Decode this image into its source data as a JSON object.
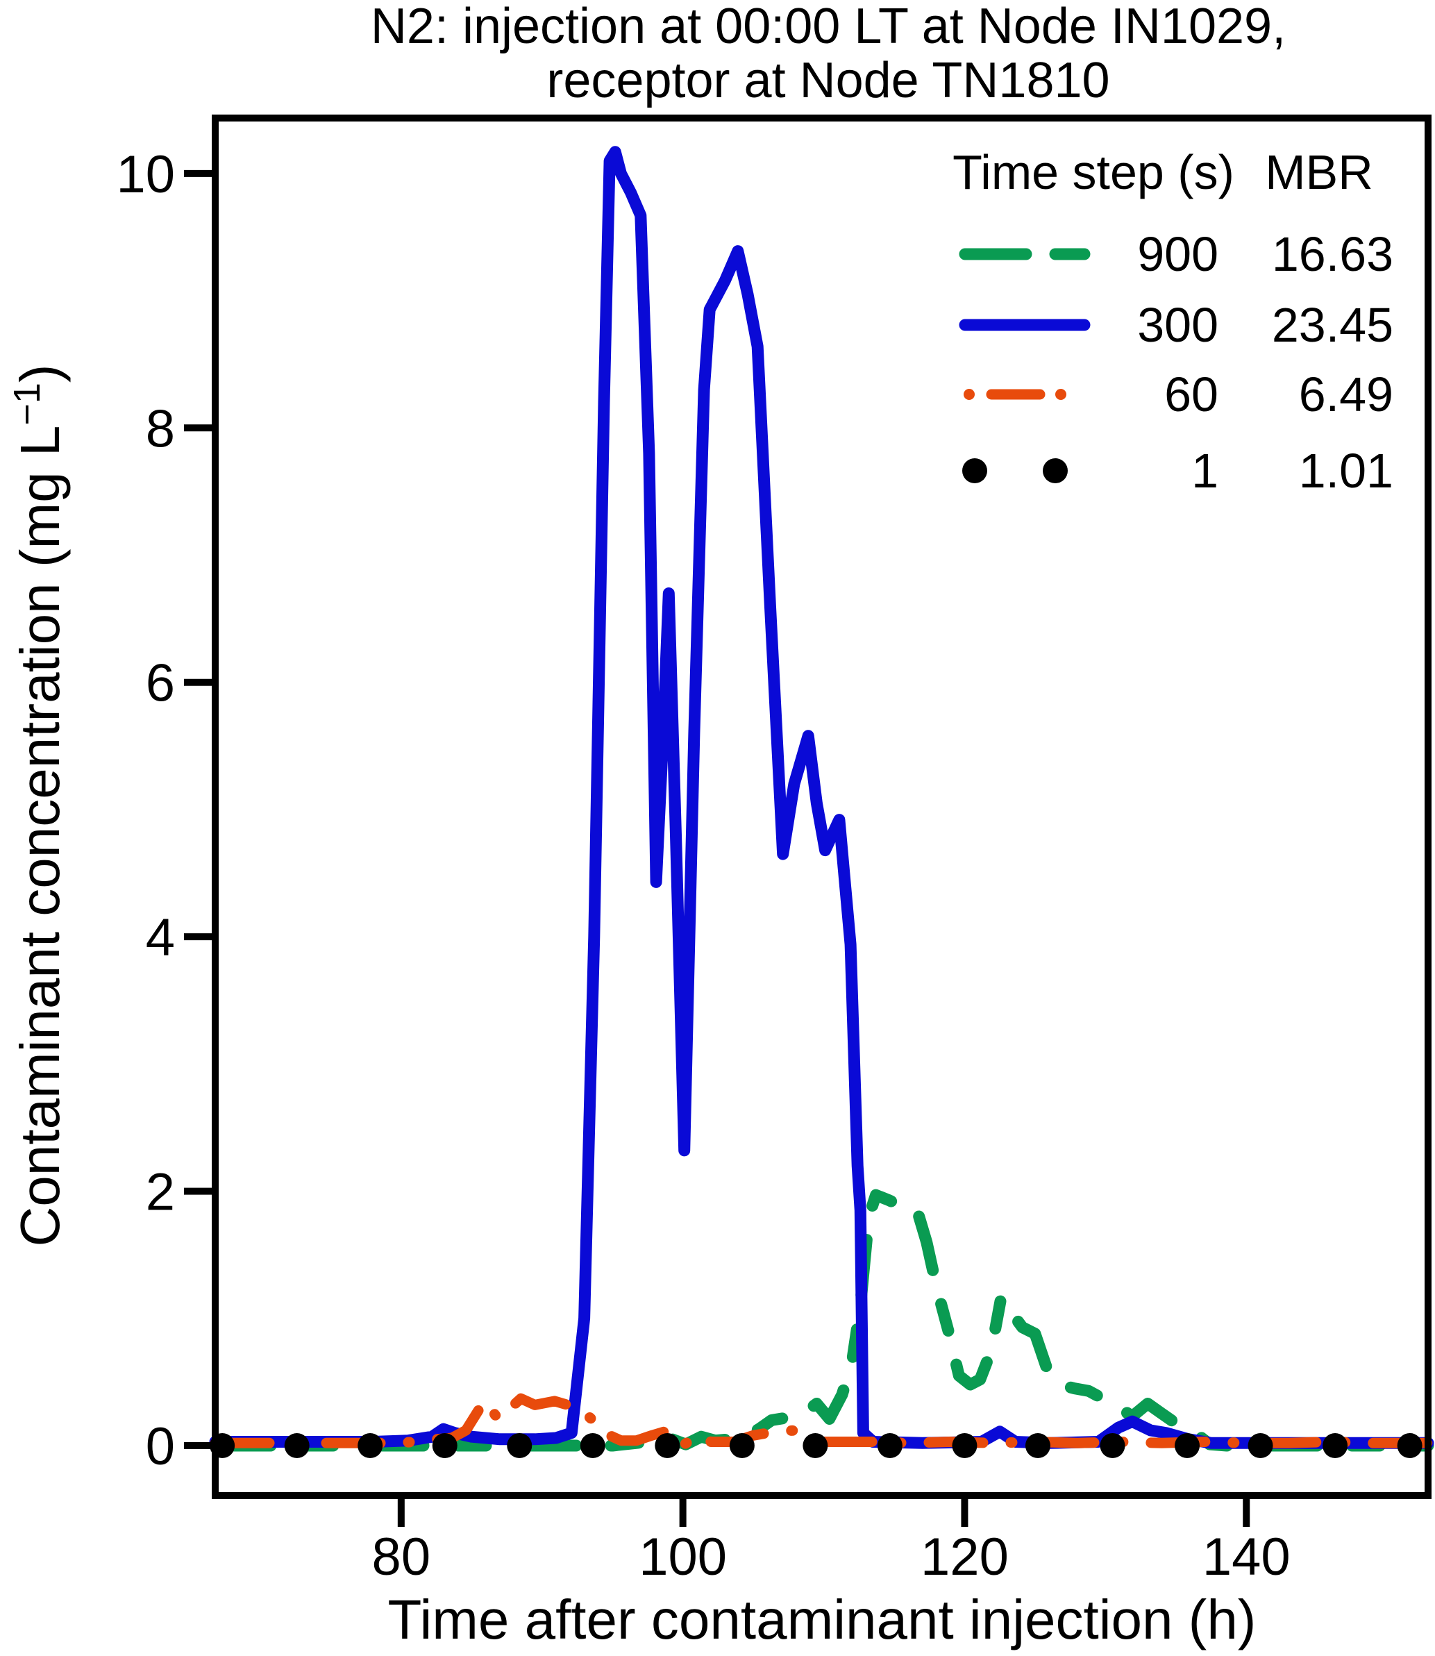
{
  "title": {
    "line1": "N2: injection at 00:00 LT at Node IN1029,",
    "line2": "receptor at Node TN1810"
  },
  "axes": {
    "x_label": "Time after contaminant injection (h)",
    "y_label_main": "Contaminant concentration (mg L",
    "y_label_sup": "−1",
    "y_label_close": ")",
    "x_ticks": [
      80,
      100,
      120,
      140
    ],
    "y_ticks": [
      0,
      2,
      4,
      6,
      8,
      10
    ]
  },
  "legend": {
    "col1_header": "Time step (s)",
    "col2_header": "MBR",
    "rows": [
      {
        "sample": "green-dash",
        "step": "900",
        "mbr": "16.63"
      },
      {
        "sample": "blue-solid",
        "step": "300",
        "mbr": "23.45"
      },
      {
        "sample": "orange-dashdot",
        "step": "60",
        "mbr": "6.49"
      },
      {
        "sample": "black-dots",
        "step": "1",
        "mbr": "1.01"
      }
    ]
  },
  "colors": {
    "green": "#0a9b52",
    "blue": "#0a0ad6",
    "orange": "#e84b0c",
    "black": "#000000"
  },
  "chart_data": {
    "type": "line",
    "title": "N2: injection at 00:00 LT at Node IN1029, receptor at Node TN1810",
    "xlabel": "Time after contaminant injection (h)",
    "ylabel": "Contaminant concentration (mg L^-1)",
    "xlim": [
      66.8,
      152.9
    ],
    "ylim": [
      -0.393,
      10.436
    ],
    "grid": false,
    "legend_position": "top-right",
    "series": [
      {
        "name": "900",
        "mbr": 16.63,
        "style": "dashed",
        "color": "#0a9b52",
        "points": [
          [
            66.8,
            0.0
          ],
          [
            95.0,
            0.0
          ],
          [
            97.5,
            0.03
          ],
          [
            99.0,
            0.06
          ],
          [
            100.2,
            0.01
          ],
          [
            101.3,
            0.07
          ],
          [
            102.3,
            0.04
          ],
          [
            103.4,
            0.05
          ],
          [
            104.4,
            0.07
          ],
          [
            105.4,
            0.13
          ],
          [
            106.3,
            0.2
          ],
          [
            107.4,
            0.22
          ],
          [
            108.4,
            0.24
          ],
          [
            109.5,
            0.33
          ],
          [
            110.4,
            0.21
          ],
          [
            111.3,
            0.4
          ],
          [
            112.0,
            0.65
          ],
          [
            112.6,
            1.1
          ],
          [
            113.2,
            1.8
          ],
          [
            113.7,
            1.97
          ],
          [
            114.6,
            1.93
          ],
          [
            115.6,
            1.88
          ],
          [
            116.6,
            1.86
          ],
          [
            117.3,
            1.6
          ],
          [
            118.0,
            1.25
          ],
          [
            118.9,
            0.88
          ],
          [
            119.6,
            0.55
          ],
          [
            120.4,
            0.48
          ],
          [
            121.1,
            0.52
          ],
          [
            121.9,
            0.75
          ],
          [
            122.6,
            1.17
          ],
          [
            123.3,
            1.05
          ],
          [
            124.1,
            0.93
          ],
          [
            125.0,
            0.88
          ],
          [
            125.8,
            0.62
          ],
          [
            126.7,
            0.48
          ],
          [
            127.8,
            0.45
          ],
          [
            128.8,
            0.43
          ],
          [
            129.8,
            0.37
          ],
          [
            130.7,
            0.32
          ],
          [
            131.9,
            0.23
          ],
          [
            133.0,
            0.33
          ],
          [
            133.9,
            0.26
          ],
          [
            134.8,
            0.19
          ],
          [
            135.8,
            0.13
          ],
          [
            136.6,
            0.08
          ],
          [
            137.4,
            0.01
          ],
          [
            138.6,
            0.0
          ],
          [
            152.9,
            0.0
          ]
        ]
      },
      {
        "name": "300",
        "mbr": 23.45,
        "style": "solid",
        "color": "#0a0ad6",
        "points": [
          [
            66.8,
            0.03
          ],
          [
            78.0,
            0.03
          ],
          [
            80.5,
            0.04
          ],
          [
            82.2,
            0.07
          ],
          [
            83.0,
            0.13
          ],
          [
            83.8,
            0.1
          ],
          [
            85.0,
            0.07
          ],
          [
            87.0,
            0.05
          ],
          [
            89.5,
            0.05
          ],
          [
            91.0,
            0.06
          ],
          [
            92.1,
            0.1
          ],
          [
            93.0,
            1.0
          ],
          [
            93.7,
            4.0
          ],
          [
            94.4,
            8.2
          ],
          [
            94.8,
            10.1
          ],
          [
            95.2,
            10.17
          ],
          [
            95.6,
            10.0
          ],
          [
            96.3,
            9.85
          ],
          [
            97.0,
            9.67
          ],
          [
            97.6,
            7.8
          ],
          [
            98.1,
            4.43
          ],
          [
            98.6,
            5.6
          ],
          [
            99.0,
            6.7
          ],
          [
            99.5,
            4.8
          ],
          [
            100.1,
            2.32
          ],
          [
            100.8,
            5.6
          ],
          [
            101.5,
            8.3
          ],
          [
            101.9,
            8.93
          ],
          [
            103.0,
            9.16
          ],
          [
            103.9,
            9.39
          ],
          [
            104.6,
            9.05
          ],
          [
            105.3,
            8.64
          ],
          [
            106.2,
            6.6
          ],
          [
            107.1,
            4.65
          ],
          [
            107.9,
            5.2
          ],
          [
            108.9,
            5.58
          ],
          [
            109.5,
            5.05
          ],
          [
            110.1,
            4.68
          ],
          [
            110.6,
            4.8
          ],
          [
            111.1,
            4.92
          ],
          [
            111.9,
            3.94
          ],
          [
            112.4,
            2.2
          ],
          [
            112.6,
            1.85
          ],
          [
            112.8,
            0.1
          ],
          [
            113.5,
            0.03
          ],
          [
            117.0,
            0.02
          ],
          [
            121.2,
            0.03
          ],
          [
            122.5,
            0.11
          ],
          [
            123.6,
            0.03
          ],
          [
            126.0,
            0.02
          ],
          [
            129.5,
            0.03
          ],
          [
            130.9,
            0.14
          ],
          [
            131.9,
            0.19
          ],
          [
            133.2,
            0.12
          ],
          [
            134.3,
            0.1
          ],
          [
            135.9,
            0.05
          ],
          [
            137.5,
            0.02
          ],
          [
            152.9,
            0.02
          ]
        ]
      },
      {
        "name": "60",
        "mbr": 6.49,
        "style": "dashdot",
        "color": "#e84b0c",
        "points": [
          [
            66.8,
            0.02
          ],
          [
            79.5,
            0.02
          ],
          [
            81.0,
            0.03
          ],
          [
            82.5,
            0.05
          ],
          [
            83.6,
            0.06
          ],
          [
            84.6,
            0.12
          ],
          [
            85.9,
            0.35
          ],
          [
            86.9,
            0.21
          ],
          [
            87.8,
            0.3
          ],
          [
            88.5,
            0.37
          ],
          [
            89.5,
            0.32
          ],
          [
            90.9,
            0.35
          ],
          [
            91.8,
            0.32
          ],
          [
            93.0,
            0.26
          ],
          [
            94.0,
            0.16
          ],
          [
            94.6,
            0.09
          ],
          [
            95.6,
            0.04
          ],
          [
            96.7,
            0.04
          ],
          [
            97.8,
            0.08
          ],
          [
            99.0,
            0.12
          ],
          [
            100.1,
            0.01
          ],
          [
            101.1,
            0.08
          ],
          [
            102.0,
            0.03
          ],
          [
            103.6,
            0.03
          ],
          [
            105.0,
            0.08
          ],
          [
            106.6,
            0.11
          ],
          [
            108.0,
            0.12
          ],
          [
            109.0,
            0.06
          ],
          [
            109.8,
            0.03
          ],
          [
            111.5,
            0.03
          ],
          [
            113.5,
            0.03
          ],
          [
            116.0,
            0.02
          ],
          [
            119.0,
            0.03
          ],
          [
            122.0,
            0.02
          ],
          [
            125.0,
            0.03
          ],
          [
            128.0,
            0.02
          ],
          [
            131.0,
            0.03
          ],
          [
            134.0,
            0.02
          ],
          [
            137.0,
            0.03
          ],
          [
            140.0,
            0.02
          ],
          [
            143.0,
            0.02
          ],
          [
            146.0,
            0.03
          ],
          [
            149.0,
            0.02
          ],
          [
            152.9,
            0.02
          ]
        ]
      },
      {
        "name": "1",
        "mbr": 1.01,
        "style": "points",
        "color": "#000000",
        "points": [
          [
            67.3,
            0
          ],
          [
            72.6,
            0
          ],
          [
            77.8,
            0
          ],
          [
            83.1,
            0
          ],
          [
            88.4,
            0
          ],
          [
            93.6,
            0
          ],
          [
            98.9,
            0
          ],
          [
            104.2,
            0
          ],
          [
            109.4,
            0
          ],
          [
            114.7,
            0
          ],
          [
            120.0,
            0
          ],
          [
            125.2,
            0
          ],
          [
            130.5,
            0
          ],
          [
            135.8,
            0
          ],
          [
            141.0,
            0
          ],
          [
            146.3,
            0
          ],
          [
            151.6,
            0
          ]
        ]
      }
    ]
  }
}
